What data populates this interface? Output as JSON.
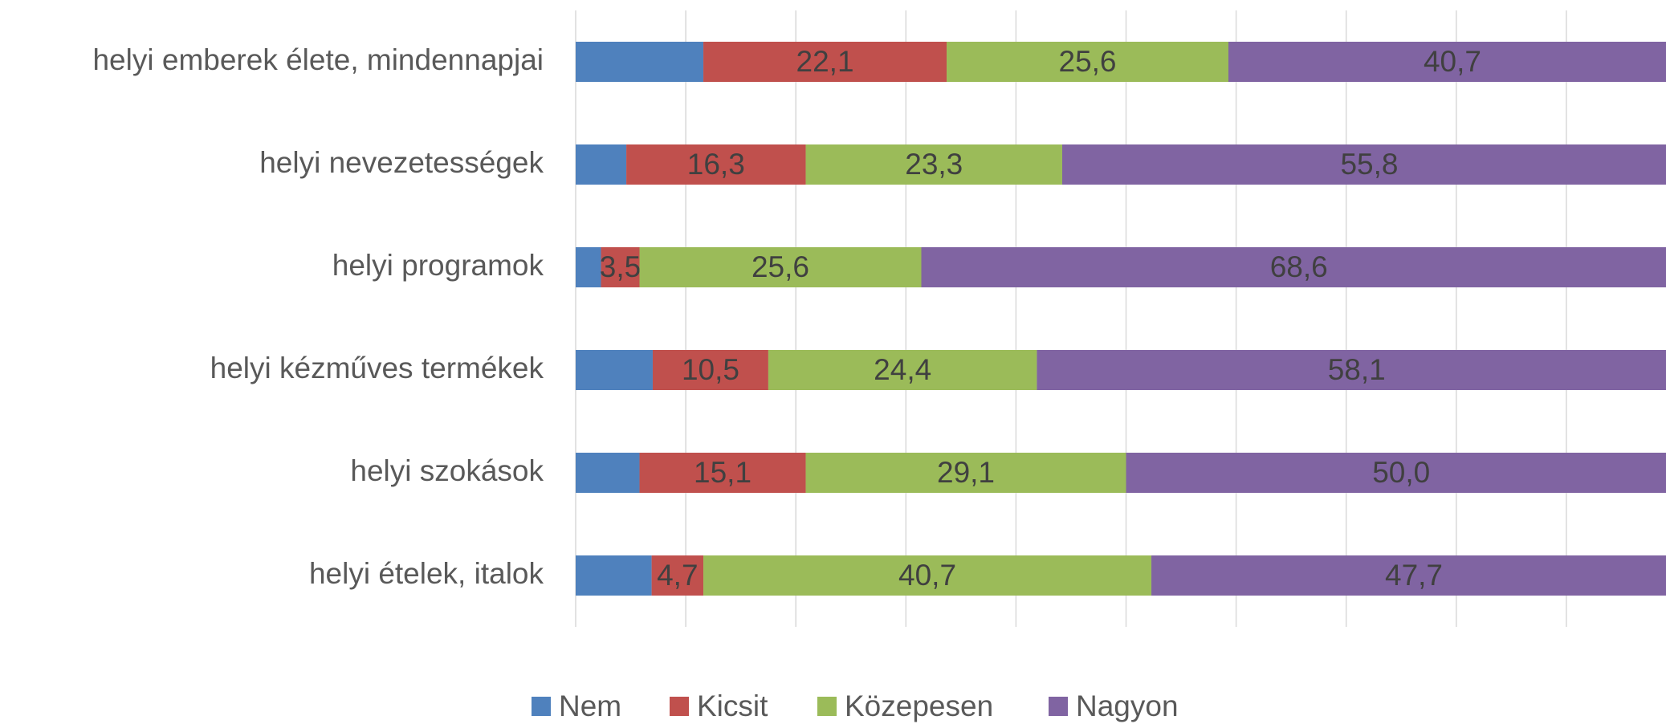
{
  "chart_data": {
    "type": "stacked_bar_horizontal",
    "categories": [
      "helyi emberek élete, mindennapjai",
      "helyi nevezetességek",
      "helyi programok",
      "helyi kézműves termékek",
      "helyi szokások",
      "helyi ételek, italok"
    ],
    "series": [
      {
        "name": "Nem",
        "color": "#4f81bd",
        "values": [
          11.6,
          4.6,
          2.3,
          7.0,
          5.8,
          6.9
        ]
      },
      {
        "name": "Kicsit",
        "color": "#c0504d",
        "values": [
          22.1,
          16.3,
          3.5,
          10.5,
          15.1,
          4.7
        ],
        "value_labels": [
          "22,1",
          "16,3",
          "3,5",
          "10,5",
          "15,1",
          "4,7"
        ]
      },
      {
        "name": "Közepesen",
        "color": "#9bbb59",
        "values": [
          25.6,
          23.3,
          25.6,
          24.4,
          29.1,
          40.7
        ],
        "value_labels": [
          "25,6",
          "23,3",
          "25,6",
          "24,4",
          "29,1",
          "40,7"
        ]
      },
      {
        "name": "Nagyon",
        "color": "#8064a2",
        "values": [
          40.7,
          55.8,
          68.6,
          58.1,
          50.0,
          47.7
        ],
        "value_labels": [
          "40,7",
          "55,8",
          "68,6",
          "58,1",
          "50,0",
          "47,7"
        ]
      }
    ],
    "xlim": [
      0,
      100
    ],
    "xticks": [
      0,
      10,
      20,
      30,
      40,
      50,
      60,
      70,
      80,
      90,
      100
    ],
    "grid": true,
    "legend": "bottom"
  }
}
